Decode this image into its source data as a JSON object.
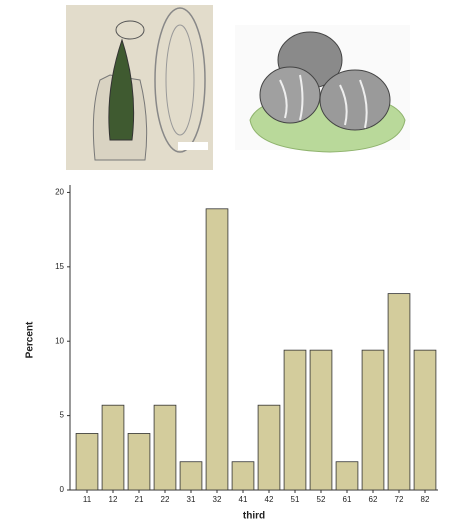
{
  "chart_data": {
    "type": "bar",
    "x_label": "third",
    "y_label": "Percent",
    "categories": [
      "11",
      "12",
      "21",
      "22",
      "31",
      "32",
      "41",
      "42",
      "51",
      "52",
      "61",
      "62",
      "72",
      "82"
    ],
    "values": [
      3.8,
      5.7,
      3.8,
      5.7,
      1.9,
      18.9,
      1.9,
      5.7,
      9.4,
      9.4,
      1.9,
      9.4,
      13.2,
      9.4
    ],
    "color": "#d3cc9c",
    "ylim": [
      0,
      20.5
    ],
    "yticks": [
      0,
      5,
      10,
      15,
      20
    ],
    "grid": false
  }
}
